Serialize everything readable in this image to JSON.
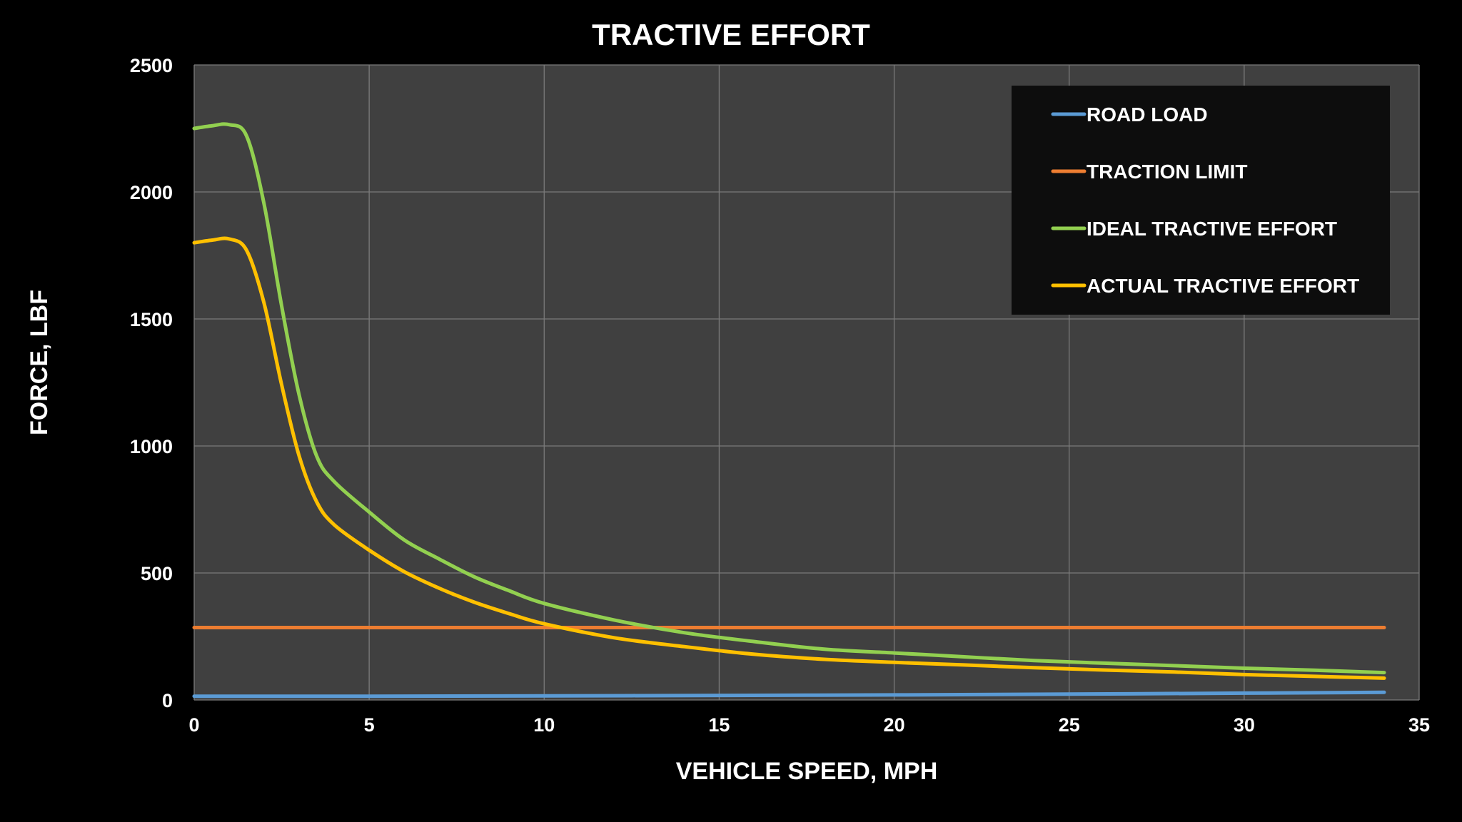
{
  "chart_data": {
    "type": "line",
    "title": "TRACTIVE EFFORT",
    "xlabel": "VEHICLE SPEED, MPH",
    "ylabel": "FORCE, LBF",
    "xlim": [
      0,
      35
    ],
    "ylim": [
      0,
      2500
    ],
    "xticks": [
      0,
      5,
      10,
      15,
      20,
      25,
      30,
      35
    ],
    "yticks": [
      0,
      500,
      1000,
      1500,
      2000,
      2500
    ],
    "grid": true,
    "legend_position": "top-right",
    "colors": {
      "page_background": "#000000",
      "plot_background": "#404040",
      "grid": "#7a7a7a",
      "legend_background": "#0d0d0d"
    },
    "series": [
      {
        "name": "ROAD LOAD",
        "color": "#5b9bd5",
        "x": [
          0,
          5,
          10,
          15,
          20,
          25,
          30,
          34
        ],
        "y": [
          15,
          15,
          16,
          18,
          20,
          23,
          27,
          30
        ]
      },
      {
        "name": "TRACTION LIMIT",
        "color": "#ed7d31",
        "x": [
          0,
          34
        ],
        "y": [
          285,
          285
        ]
      },
      {
        "name": "IDEAL TRACTIVE EFFORT",
        "color": "#92d050",
        "x": [
          0,
          0.5,
          1,
          1.5,
          2,
          2.5,
          3,
          3.5,
          4,
          5,
          6,
          7,
          8,
          9,
          10,
          12,
          14,
          16,
          18,
          20,
          22,
          24,
          26,
          28,
          30,
          32,
          34
        ],
        "y": [
          2250,
          2260,
          2265,
          2220,
          1950,
          1550,
          1200,
          960,
          860,
          740,
          630,
          555,
          485,
          430,
          380,
          315,
          265,
          230,
          200,
          185,
          170,
          155,
          145,
          135,
          125,
          117,
          108
        ]
      },
      {
        "name": "ACTUAL TRACTIVE EFFORT",
        "color": "#ffc000",
        "x": [
          0,
          0.5,
          1,
          1.5,
          2,
          2.5,
          3,
          3.5,
          4,
          5,
          6,
          7,
          8,
          9,
          10,
          12,
          14,
          16,
          18,
          20,
          22,
          24,
          26,
          28,
          30,
          32,
          34
        ],
        "y": [
          1800,
          1810,
          1815,
          1770,
          1560,
          1240,
          960,
          780,
          690,
          590,
          505,
          440,
          385,
          340,
          300,
          245,
          210,
          180,
          160,
          148,
          138,
          127,
          118,
          110,
          100,
          93,
          86
        ]
      }
    ]
  }
}
